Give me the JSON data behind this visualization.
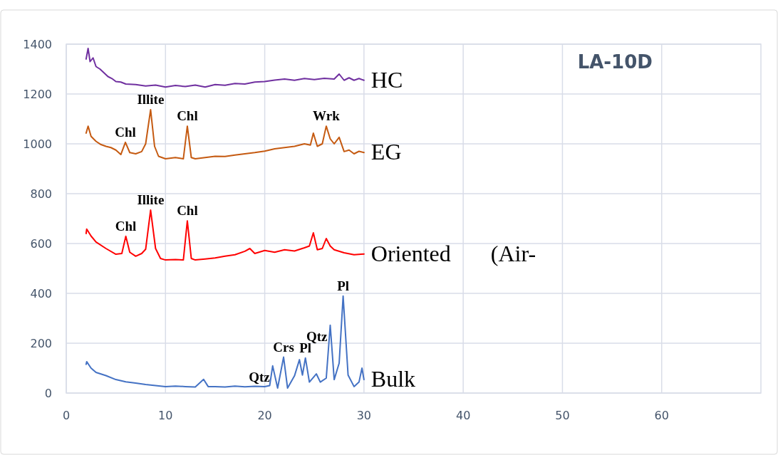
{
  "chart_data": {
    "type": "line",
    "title": "LA-10D",
    "xlim": [
      0,
      70
    ],
    "xticks": [
      0,
      10,
      20,
      30,
      40,
      50,
      60
    ],
    "ylim": [
      0,
      1400
    ],
    "yticks": [
      0,
      200,
      400,
      600,
      800,
      1000,
      1200,
      1400
    ],
    "grid": true,
    "marker": "none",
    "line_style": "solid",
    "series": [
      {
        "name": "HC",
        "color": "#7030a0",
        "x": [
          2,
          2.2,
          2.4,
          2.7,
          3,
          3.4,
          3.8,
          4.2,
          4.6,
          5,
          5.5,
          6,
          7,
          8,
          9,
          10,
          11,
          12,
          13,
          14,
          15,
          16,
          17,
          18,
          19,
          20,
          21,
          22,
          23,
          24,
          25,
          26,
          27,
          27.5,
          28,
          28.5,
          29,
          29.5,
          30
        ],
        "values": [
          1340,
          1383,
          1330,
          1345,
          1310,
          1300,
          1285,
          1270,
          1262,
          1250,
          1248,
          1240,
          1238,
          1232,
          1236,
          1228,
          1234,
          1230,
          1236,
          1228,
          1238,
          1235,
          1242,
          1240,
          1248,
          1250,
          1256,
          1260,
          1255,
          1262,
          1258,
          1263,
          1260,
          1280,
          1255,
          1265,
          1255,
          1262,
          1255
        ]
      },
      {
        "name": "EG",
        "color": "#c55a11",
        "x": [
          2,
          2.2,
          2.5,
          3,
          3.5,
          4,
          4.5,
          5,
          5.5,
          5.96,
          6.4,
          7,
          7.6,
          8,
          8.5,
          8.9,
          9.3,
          10,
          11,
          11.8,
          12.2,
          12.6,
          13,
          14,
          15,
          16,
          17,
          18,
          19,
          20,
          21,
          22,
          23,
          24,
          24.6,
          24.9,
          25.3,
          25.8,
          26.2,
          26.6,
          27,
          27.5,
          28,
          28.5,
          29,
          29.5,
          30
        ],
        "values": [
          1043,
          1071,
          1030,
          1010,
          997,
          990,
          985,
          975,
          957,
          1006,
          965,
          960,
          969,
          1000,
          1137,
          990,
          950,
          940,
          945,
          940,
          1071,
          945,
          940,
          945,
          950,
          949,
          955,
          960,
          965,
          971,
          980,
          985,
          990,
          1000,
          995,
          1043,
          990,
          1000,
          1071,
          1020,
          1000,
          1026,
          969,
          975,
          960,
          970,
          965
        ]
      },
      {
        "name": "Oriented       (Air-",
        "color": "#ff0000",
        "x": [
          2,
          2.06,
          2.5,
          3,
          4,
          5,
          5.6,
          6,
          6.4,
          7,
          7.6,
          8,
          8.5,
          9,
          9.5,
          10,
          11,
          11.8,
          12.2,
          12.6,
          13,
          14,
          15,
          16,
          17,
          18,
          18.5,
          19,
          20,
          21,
          22,
          23,
          24,
          24.5,
          24.9,
          25.3,
          25.8,
          26.2,
          26.6,
          27,
          28,
          29,
          30
        ],
        "values": [
          640,
          658,
          630,
          606,
          580,
          557,
          560,
          629,
          565,
          549,
          560,
          577,
          734,
          580,
          540,
          534,
          536,
          534,
          691,
          540,
          534,
          538,
          542,
          549,
          555,
          569,
          580,
          560,
          572,
          565,
          575,
          570,
          583,
          590,
          643,
          575,
          580,
          620,
          590,
          575,
          563,
          555,
          558
        ]
      },
      {
        "name": "Bulk",
        "color": "#4472c4",
        "x": [
          2,
          2.06,
          2.5,
          3,
          4,
          5,
          6,
          7,
          8,
          9,
          10,
          11,
          12,
          13,
          13.84,
          14.3,
          15,
          16,
          17,
          18,
          19,
          20,
          20.5,
          20.8,
          21.3,
          21.9,
          22.3,
          23,
          23.5,
          23.8,
          24.1,
          24.5,
          25.2,
          25.6,
          26.2,
          26.6,
          27,
          27.5,
          27.9,
          28.4,
          29,
          29.5,
          29.8,
          30
        ],
        "values": [
          115,
          126,
          100,
          83,
          70,
          54,
          45,
          40,
          34,
          30,
          26,
          28,
          26,
          24,
          55,
          26,
          26,
          24,
          28,
          25,
          27,
          26,
          30,
          109,
          20,
          144,
          20,
          69,
          134,
          72,
          141,
          44,
          77,
          44,
          60,
          272,
          54,
          120,
          389,
          72,
          26,
          44,
          100,
          54
        ]
      }
    ],
    "annotations": [
      {
        "text": "Chl",
        "x": 5.96,
        "y": 1006
      },
      {
        "text": "Illite",
        "x": 8.5,
        "y": 1137
      },
      {
        "text": "Chl",
        "x": 12.2,
        "y": 1071
      },
      {
        "text": "Wrk",
        "x": 26.2,
        "y": 1071
      },
      {
        "text": "Chl",
        "x": 6,
        "y": 629
      },
      {
        "text": "Illite",
        "x": 8.5,
        "y": 734
      },
      {
        "text": "Chl",
        "x": 12.2,
        "y": 691
      },
      {
        "text": "Qtz",
        "x": 20.8,
        "y": 109
      },
      {
        "text": "Crs",
        "x": 21.9,
        "y": 144
      },
      {
        "text": "Pl",
        "x": 24.1,
        "y": 141
      },
      {
        "text": "Qtz",
        "x": 26.6,
        "y": 272
      },
      {
        "text": "Pl",
        "x": 27.9,
        "y": 389
      }
    ]
  }
}
